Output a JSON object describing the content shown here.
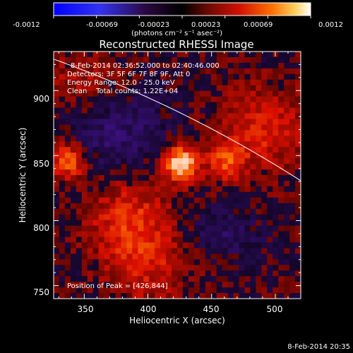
{
  "colorbar": {
    "tick_labels": [
      "-0.0012",
      "-0.00069",
      "-0.00023",
      "0.00023",
      "0.00069",
      "0.0012"
    ],
    "units_label": "(photons cm⁻² s⁻¹ asec⁻²)"
  },
  "title": "Reconstructed RHESSI Image",
  "info": {
    "time_range": "8-Feb-2014 02:36:52.000 to 02:40:46.000",
    "detectors": "Detectors: 3F 5F 6F 7F 8F 9F, Att 0",
    "energy_range": "Energy Range: 12.0 - 25.0 keV",
    "method_counts": "Clean    Total counts: 1.22E+04"
  },
  "peak_label": "Position of Peak = [426,844]",
  "axes": {
    "xlabel": "Heliocentric X (arcsec)",
    "ylabel": "Heliocentric Y (arcsec)",
    "x_ticks": [
      "350",
      "400",
      "450",
      "500"
    ],
    "y_ticks": [
      "900",
      "850",
      "800",
      "750"
    ],
    "xlim": [
      326,
      520
    ],
    "ylim": [
      740,
      930
    ]
  },
  "footer_timestamp": "8-Feb-2014 20:35",
  "image_sources": [
    {
      "x": 426,
      "y": 844,
      "amp": 1.0
    },
    {
      "x": 338,
      "y": 846,
      "amp": 0.62
    },
    {
      "x": 461,
      "y": 846,
      "amp": 0.5
    },
    {
      "x": 385,
      "y": 800,
      "amp": 0.4
    },
    {
      "x": 490,
      "y": 870,
      "amp": 0.38
    },
    {
      "x": 400,
      "y": 765,
      "amp": 0.28
    },
    {
      "x": 350,
      "y": 900,
      "amp": 0.25
    }
  ],
  "limb_arc": {
    "center_x": 0,
    "center_y": 0,
    "radius": 980
  },
  "colors": {
    "negative_low": "#1010ff",
    "zero": "#000000",
    "positive_mid": "#d01000",
    "positive_high": "#ffa000",
    "max": "#ffffff"
  }
}
